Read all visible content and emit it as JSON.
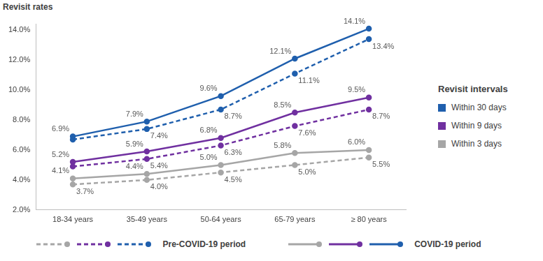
{
  "chart_data": {
    "type": "line",
    "y_title": "Revisit rates",
    "categories": [
      "18-34 years",
      "35-49 years",
      "50-64 years",
      "65-79 years",
      "≥ 80 years"
    ],
    "ylim": [
      2,
      14.4
    ],
    "yticks": [
      {
        "value": 2,
        "label": "2.0%"
      },
      {
        "value": 4,
        "label": "4.0%"
      },
      {
        "value": 6,
        "label": "6.0%"
      },
      {
        "value": 8,
        "label": "8.0%"
      },
      {
        "value": 10,
        "label": "10.0%"
      },
      {
        "value": 12,
        "label": "12.0%"
      },
      {
        "value": 14,
        "label": "14.0%"
      }
    ],
    "grid": false,
    "data_labels": true,
    "marker": "circle",
    "legend": "right",
    "legend_title": "Revisit intervals",
    "series": [
      {
        "name": "Within 30 days",
        "period": "Pre-COVID-19 period",
        "color": "#1f5fad",
        "line_style": "dashed",
        "values": [
          6.7,
          7.4,
          8.7,
          11.1,
          13.4
        ],
        "value_labels": [
          null,
          "7.4%",
          "8.7%",
          "11.1%",
          "13.4%"
        ]
      },
      {
        "name": "Within 9 days",
        "period": "Pre-COVID-19 period",
        "color": "#7030a0",
        "line_style": "dashed",
        "values": [
          4.9,
          5.4,
          6.3,
          7.6,
          8.7
        ],
        "value_labels": [
          null,
          "5.4%",
          "6.3%",
          "7.6%",
          "8.7%"
        ]
      },
      {
        "name": "Within 3 days",
        "period": "Pre-COVID-19 period",
        "color": "#a6a6a6",
        "line_style": "dashed",
        "values": [
          3.7,
          4.0,
          4.5,
          5.0,
          5.5
        ],
        "value_labels": [
          "3.7%",
          "4.0%",
          "4.5%",
          "5.0%",
          "5.5%"
        ]
      },
      {
        "name": "Within 30 days",
        "period": "COVID-19 period",
        "color": "#1f5fad",
        "line_style": "solid",
        "values": [
          6.9,
          7.9,
          9.6,
          12.1,
          14.1
        ],
        "value_labels": [
          "6.9%",
          "7.9%",
          "9.6%",
          "12.1%",
          "14.1%"
        ]
      },
      {
        "name": "Within 9 days",
        "period": "COVID-19 period",
        "color": "#7030a0",
        "line_style": "solid",
        "values": [
          5.2,
          5.9,
          6.8,
          8.5,
          9.5
        ],
        "value_labels": [
          "5.2%",
          "5.9%",
          "6.8%",
          "8.5%",
          "9.5%"
        ]
      },
      {
        "name": "Within 3 days",
        "period": "COVID-19 period",
        "color": "#a6a6a6",
        "line_style": "solid",
        "values": [
          4.1,
          4.4,
          5.0,
          5.8,
          6.0
        ],
        "value_labels": [
          "4.1%",
          "4.4%",
          "5.0%",
          "5.8%",
          "6.0%"
        ]
      }
    ]
  }
}
